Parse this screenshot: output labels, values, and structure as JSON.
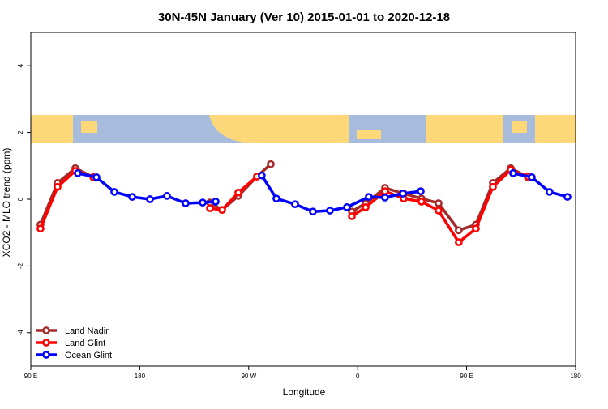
{
  "chart_data": {
    "type": "line",
    "title": "30N-45N January (Ver 10)   2015-01-01 to 2020-12-18",
    "x_label": "Longitude",
    "y_label": "XCO2 - MLO trend (ppm)",
    "xlim": [
      90,
      540
    ],
    "xticks": [
      {
        "value": 90,
        "label": "90 E"
      },
      {
        "value": 180,
        "label": "180"
      },
      {
        "value": 270,
        "label": "90 W"
      },
      {
        "value": 360,
        "label": "0"
      },
      {
        "value": 450,
        "label": "90 E"
      },
      {
        "value": 540,
        "label": "180"
      }
    ],
    "ylim": [
      -5,
      5
    ],
    "yticks": [
      -4,
      -2,
      0,
      2,
      4
    ],
    "legend": "bottom-left",
    "series": [
      {
        "name": "Land Nadir",
        "color": "#a52a2a",
        "x": [
          98,
          112.1,
          126.8,
          141.6,
          null,
          238,
          248,
          261.4,
          276.8,
          288.2,
          null,
          355.2,
          366.6,
          382.6,
          398,
          412.7,
          426.8,
          443.5,
          457.6,
          471.7,
          486.4,
          500.5
        ],
        "values": [
          -0.76,
          0.49,
          0.93,
          0.66,
          null,
          -0.1,
          -0.32,
          0.1,
          0.68,
          1.05,
          null,
          -0.37,
          -0.12,
          0.34,
          0.17,
          0.02,
          -0.12,
          -0.93,
          -0.76,
          0.49,
          0.93,
          0.66
        ]
      },
      {
        "name": "Land Glint",
        "color": "#ff0000",
        "x": [
          98,
          112.1,
          126.8,
          141.6,
          null,
          238,
          248,
          261.4,
          276.8,
          null,
          355.2,
          366.6,
          382.6,
          398,
          412.7,
          426.8,
          443.5,
          457.6,
          471.7,
          486.4,
          500.5
        ],
        "values": [
          -0.88,
          0.37,
          0.85,
          0.66,
          null,
          -0.27,
          -0.32,
          0.2,
          0.68,
          null,
          -0.51,
          -0.24,
          0.24,
          0.02,
          -0.07,
          -0.34,
          -1.29,
          -0.88,
          0.37,
          0.88,
          0.68
        ]
      },
      {
        "name": "Ocean Glint",
        "color": "#0000ff",
        "x": [
          128.8,
          144.2,
          159,
          173.7,
          188.4,
          202.5,
          217.9,
          232,
          242.7,
          null,
          280.8,
          292.9,
          308.3,
          323,
          337.1,
          351.1,
          369.2,
          382.6,
          397.3,
          412.1,
          null,
          488.4,
          503.8,
          518.5,
          533.3
        ],
        "values": [
          0.78,
          0.66,
          0.22,
          0.07,
          0,
          0.1,
          -0.12,
          -0.1,
          -0.07,
          null,
          0.71,
          0.02,
          -0.15,
          -0.37,
          -0.34,
          -0.24,
          0.07,
          0.05,
          0.17,
          0.24,
          null,
          0.78,
          0.66,
          0.22,
          0.07
        ]
      }
    ]
  }
}
